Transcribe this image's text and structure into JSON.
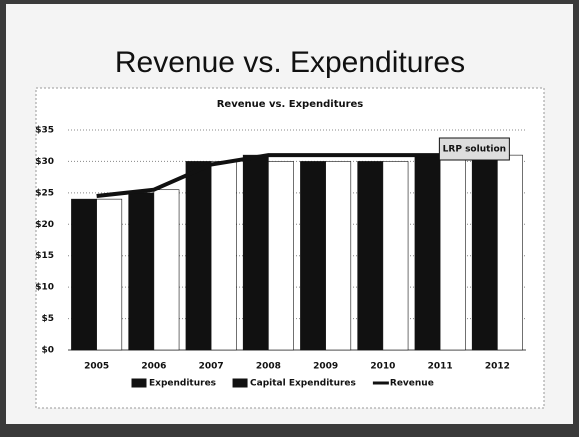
{
  "slide_title": "Revenue vs. Expenditures",
  "chart_data": {
    "type": "bar",
    "title": "Revenue vs. Expenditures",
    "categories": [
      "2005",
      "2006",
      "2007",
      "2008",
      "2009",
      "2010",
      "2011",
      "2012"
    ],
    "series": [
      {
        "name": "Expenditures",
        "color": "#111111",
        "values": [
          24,
          25,
          30,
          31,
          30,
          30,
          31,
          31
        ]
      },
      {
        "name": "Capital Expenditures",
        "color": "#ffffff",
        "values": [
          24,
          25.5,
          30,
          30,
          30,
          30,
          30.5,
          31
        ]
      },
      {
        "name": "Revenue",
        "type": "line",
        "color": "#111111",
        "values": [
          24.5,
          25.5,
          29.5,
          31,
          31,
          31,
          31,
          31
        ]
      }
    ],
    "ylim": [
      0,
      35
    ],
    "yticks": [
      {
        "value": 0,
        "label": "$0"
      },
      {
        "value": 5,
        "label": "$5"
      },
      {
        "value": 10,
        "label": "$10"
      },
      {
        "value": 15,
        "label": "$15"
      },
      {
        "value": 20,
        "label": "$20"
      },
      {
        "value": 25,
        "label": "$25"
      },
      {
        "value": 30,
        "label": "$30"
      },
      {
        "value": 35,
        "label": "$35"
      }
    ],
    "grid": true,
    "legend": "bottom",
    "annotation": "LRP solution"
  }
}
